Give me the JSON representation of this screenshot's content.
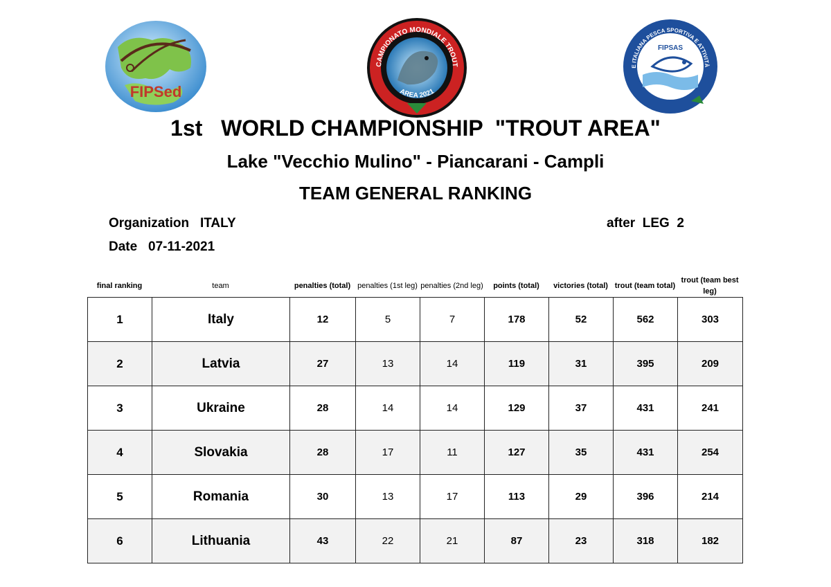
{
  "logos": {
    "fipsed": {
      "text": "FIPSed",
      "color": "#c0392b"
    },
    "championship": {
      "arc_top": "CAMPIONATO MONDIALE TROUT",
      "arc_bottom": "AREA 2021"
    },
    "fipsas": {
      "arc": "FEDERAZIONE ITALIANA PESCA SPORTIVA E ATTIVITÀ SUBACQUEE",
      "text": "FIPSAS"
    }
  },
  "header": {
    "title": "1st   WORLD CHAMPIONSHIP  \"TROUT AREA\"",
    "subtitle": "Lake \"Vecchio Mulino\" - Piancarani - Campli",
    "ranking_title": "TEAM GENERAL RANKING"
  },
  "meta": {
    "organization": "Organization   ITALY",
    "leg": "after  LEG  2",
    "date": "Date   07-11-2021"
  },
  "columns": [
    "final ranking",
    "team",
    "penalties (total)",
    "penalties (1st leg)",
    "penalties (2nd leg)",
    "points (total)",
    "victories (total)",
    "trout (team total)",
    "trout (team best leg)"
  ],
  "rows": [
    [
      "1",
      "Italy",
      "12",
      "5",
      "7",
      "178",
      "52",
      "562",
      "303"
    ],
    [
      "2",
      "Latvia",
      "27",
      "13",
      "14",
      "119",
      "31",
      "395",
      "209"
    ],
    [
      "3",
      "Ukraine",
      "28",
      "14",
      "14",
      "129",
      "37",
      "431",
      "241"
    ],
    [
      "4",
      "Slovakia",
      "28",
      "17",
      "11",
      "127",
      "35",
      "431",
      "254"
    ],
    [
      "5",
      "Romania",
      "30",
      "13",
      "17",
      "113",
      "29",
      "396",
      "214"
    ],
    [
      "6",
      "Lithuania",
      "43",
      "22",
      "21",
      "87",
      "23",
      "318",
      "182"
    ]
  ]
}
